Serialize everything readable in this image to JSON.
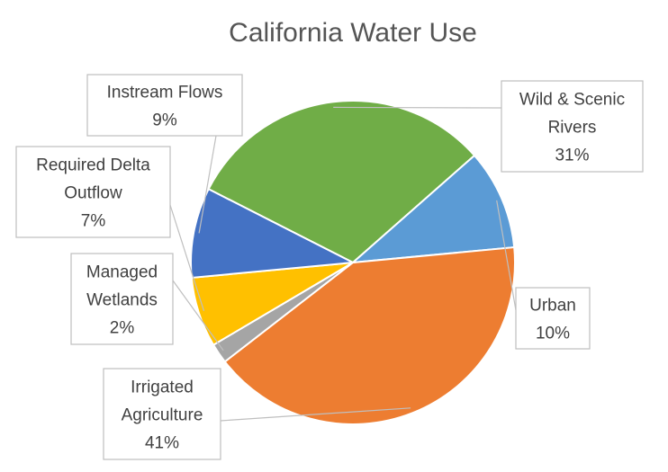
{
  "chart_data": {
    "type": "pie",
    "title": "California Water Use",
    "slices": [
      {
        "label": "Wild & Scenic Rivers",
        "lines": [
          "Wild & Scenic",
          "Rivers"
        ],
        "value": 31,
        "display": "31%",
        "color": "#70ad47"
      },
      {
        "label": "Urban",
        "lines": [
          "Urban"
        ],
        "value": 10,
        "display": "10%",
        "color": "#5b9bd5"
      },
      {
        "label": "Irrigated Agriculture",
        "lines": [
          "Irrigated",
          "Agriculture"
        ],
        "value": 41,
        "display": "41%",
        "color": "#ed7d31"
      },
      {
        "label": "Managed Wetlands",
        "lines": [
          "Managed",
          "Wetlands"
        ],
        "value": 2,
        "display": "2%",
        "color": "#a5a5a5"
      },
      {
        "label": "Required Delta Outflow",
        "lines": [
          "Required Delta",
          "Outflow"
        ],
        "value": 7,
        "display": "7%",
        "color": "#ffc000"
      },
      {
        "label": "Instream Flows",
        "lines": [
          "Instream Flows"
        ],
        "value": 9,
        "display": "9%",
        "color": "#4472c4"
      }
    ]
  }
}
